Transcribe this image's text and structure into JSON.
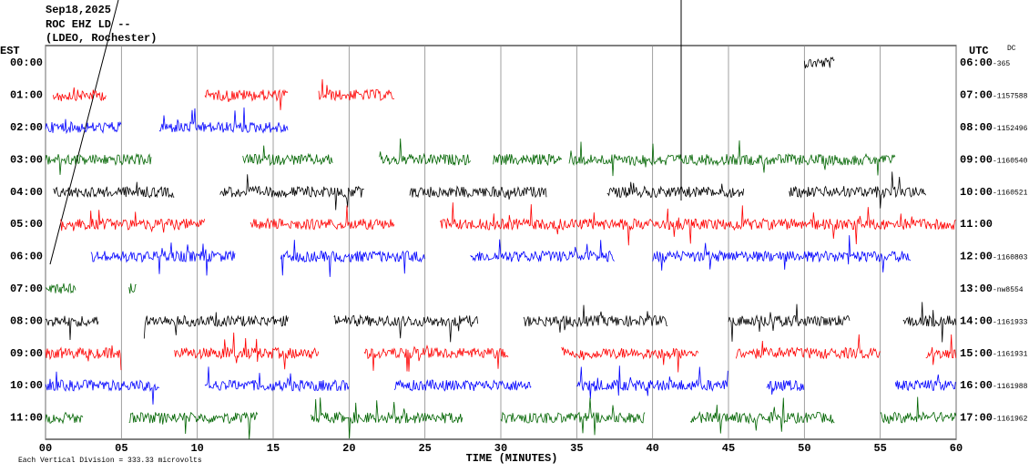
{
  "header": {
    "date": "Sep18,2025",
    "station": "ROC EHZ LD --",
    "location": "(LDEO, Rochester)"
  },
  "axes": {
    "left_label": "EST",
    "right_label": "UTC",
    "dc_label": "DC",
    "rows": [
      {
        "est": "00:00",
        "utc": "06:00",
        "dc": "-365",
        "color": "black",
        "segments": [
          [
            50,
            52
          ]
        ]
      },
      {
        "est": "01:00",
        "utc": "07:00",
        "dc": "-1157588",
        "color": "red",
        "segments": [
          [
            0.5,
            4
          ],
          [
            10.5,
            16
          ],
          [
            18,
            23
          ]
        ]
      },
      {
        "est": "02:00",
        "utc": "08:00",
        "dc": "-1152496",
        "color": "blue",
        "segments": [
          [
            0,
            5
          ],
          [
            7.5,
            16
          ]
        ]
      },
      {
        "est": "03:00",
        "utc": "09:00",
        "dc": "-1160540",
        "color": "green",
        "segments": [
          [
            0,
            7
          ],
          [
            13,
            19
          ],
          [
            22,
            28
          ],
          [
            29.5,
            34
          ],
          [
            34.5,
            56
          ]
        ]
      },
      {
        "est": "04:00",
        "utc": "10:00",
        "dc": "-1160521",
        "color": "black",
        "segments": [
          [
            0.5,
            8.5
          ],
          [
            11.5,
            21
          ],
          [
            24,
            33
          ],
          [
            37,
            46
          ],
          [
            49,
            58
          ]
        ]
      },
      {
        "est": "05:00",
        "utc": "11:00",
        "dc": null,
        "color": "red",
        "segments": [
          [
            1,
            10.5
          ],
          [
            13.5,
            23
          ],
          [
            26,
            60
          ]
        ]
      },
      {
        "est": "06:00",
        "utc": "12:00",
        "dc": "-1160803",
        "color": "blue",
        "segments": [
          [
            3,
            12.5
          ],
          [
            15.5,
            25
          ],
          [
            28,
            37.5
          ],
          [
            40,
            57
          ]
        ]
      },
      {
        "est": "07:00",
        "utc": "13:00",
        "dc": "-nw8554",
        "color": "green",
        "segments": [
          [
            0,
            2
          ],
          [
            5.5,
            6
          ]
        ]
      },
      {
        "est": "08:00",
        "utc": "14:00",
        "dc": "-1161933",
        "color": "black",
        "segments": [
          [
            0,
            3.5
          ],
          [
            6.5,
            16
          ],
          [
            19,
            28.5
          ],
          [
            31.5,
            41
          ],
          [
            45,
            53
          ],
          [
            56.5,
            60
          ]
        ]
      },
      {
        "est": "09:00",
        "utc": "15:00",
        "dc": "-1161931",
        "color": "red",
        "segments": [
          [
            0,
            5
          ],
          [
            8.5,
            18
          ],
          [
            21,
            30.5
          ],
          [
            34,
            43
          ],
          [
            45.5,
            55
          ],
          [
            58,
            60
          ]
        ]
      },
      {
        "est": "10:00",
        "utc": "16:00",
        "dc": "-1161988",
        "color": "blue",
        "segments": [
          [
            0,
            7.5
          ],
          [
            10.5,
            20
          ],
          [
            23,
            32
          ],
          [
            35,
            45
          ],
          [
            47.5,
            50
          ],
          [
            56,
            60
          ]
        ]
      },
      {
        "est": "11:00",
        "utc": "17:00",
        "dc": "-1161962",
        "color": "green",
        "segments": [
          [
            0,
            2.5
          ],
          [
            5.5,
            14
          ],
          [
            17.5,
            27.5
          ],
          [
            30,
            39.5
          ],
          [
            42.5,
            52
          ],
          [
            55,
            60
          ]
        ]
      }
    ],
    "xlim": [
      0,
      60
    ],
    "xticks": [
      {
        "value": 0,
        "label": "00"
      },
      {
        "value": 5,
        "label": "05"
      },
      {
        "value": 10,
        "label": "10"
      },
      {
        "value": 15,
        "label": "15"
      },
      {
        "value": 20,
        "label": "20"
      },
      {
        "value": 25,
        "label": "25"
      },
      {
        "value": 30,
        "label": "30"
      },
      {
        "value": 35,
        "label": "35"
      },
      {
        "value": 40,
        "label": "40"
      },
      {
        "value": 45,
        "label": "45"
      },
      {
        "value": 50,
        "label": "50"
      },
      {
        "value": 55,
        "label": "55"
      },
      {
        "value": 60,
        "label": "60"
      }
    ],
    "xlabel": "TIME (MINUTES)"
  },
  "footer": "Each Vertical Division = 333.33 microvolts"
}
